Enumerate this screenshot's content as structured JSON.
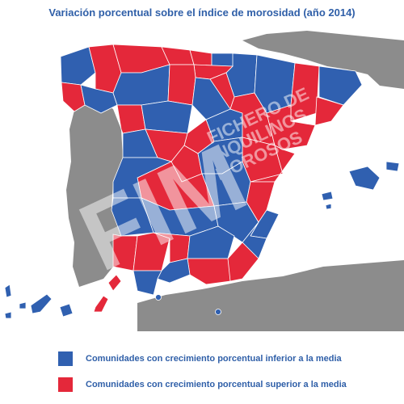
{
  "title": "Variación porcentual sobre el índice de morosidad (año 2014)",
  "colors": {
    "below": "#3060b0",
    "above": "#e4283a",
    "land": "#8c8c8c",
    "sea": "#ffffff"
  },
  "legend": {
    "below_label": "Comunidades con crecimiento porcentual inferior a la media",
    "above_label": "Comunidades con crecimiento porcentual superior a la media"
  },
  "watermark": "FIM FICHERO DE INQUILINOS MOROSOS"
}
